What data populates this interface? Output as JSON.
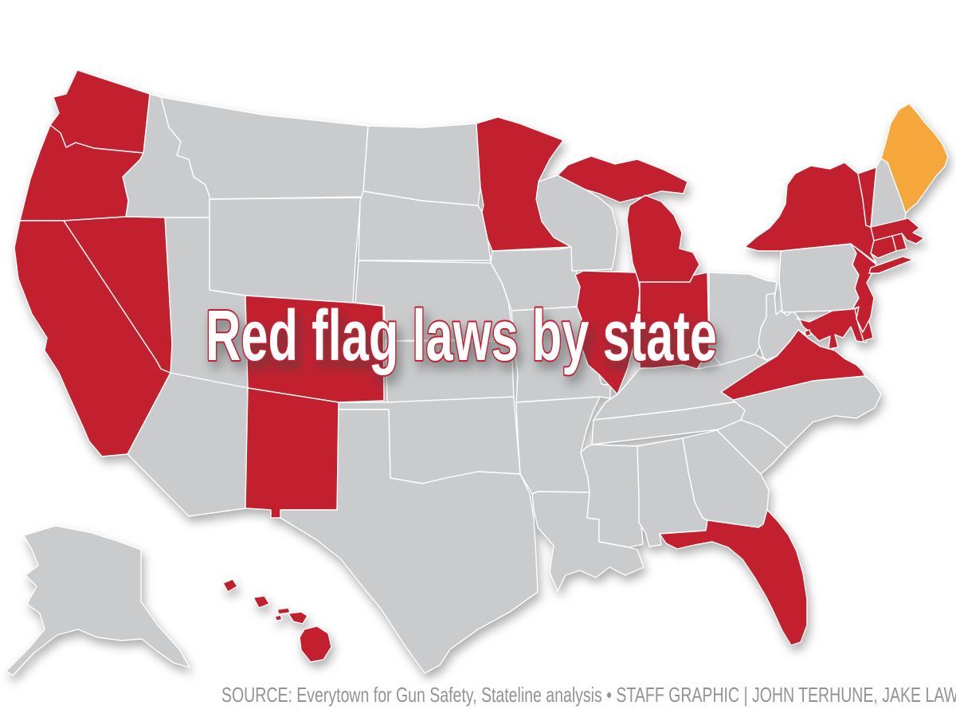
{
  "title": "Red flag laws by state",
  "source_credit": "SOURCE: Everytown for Gun Safety, Stateline analysis • STAFF GRAPHIC | JOHN TERHUNE, JAKE LAW",
  "chart_data": {
    "type": "choropleth_map",
    "region": "United States",
    "title": "Red flag laws by state",
    "colors": {
      "red_flag_law": "#c3202f",
      "yellow_flag_law": "#f6a73b",
      "no_law": "#c9cbcd",
      "state_border": "#ffffff",
      "title_fill": "#ffffff",
      "title_outline": "#c3202f",
      "source_text": "#919396"
    },
    "states": [
      {
        "id": "AK",
        "name": "Alaska",
        "status": "no_law"
      },
      {
        "id": "MT",
        "name": "Montana",
        "status": "no_law"
      },
      {
        "id": "ID",
        "name": "Idaho",
        "status": "no_law"
      },
      {
        "id": "WY",
        "name": "Wyoming",
        "status": "no_law"
      },
      {
        "id": "UT",
        "name": "Utah",
        "status": "no_law"
      },
      {
        "id": "AZ",
        "name": "Arizona",
        "status": "no_law"
      },
      {
        "id": "ND",
        "name": "North Dakota",
        "status": "no_law"
      },
      {
        "id": "SD",
        "name": "South Dakota",
        "status": "no_law"
      },
      {
        "id": "NE",
        "name": "Nebraska",
        "status": "no_law"
      },
      {
        "id": "KS",
        "name": "Kansas",
        "status": "no_law"
      },
      {
        "id": "OK",
        "name": "Oklahoma",
        "status": "no_law"
      },
      {
        "id": "TX",
        "name": "Texas",
        "status": "no_law"
      },
      {
        "id": "IA",
        "name": "Iowa",
        "status": "no_law"
      },
      {
        "id": "MO",
        "name": "Missouri",
        "status": "no_law"
      },
      {
        "id": "AR",
        "name": "Arkansas",
        "status": "no_law"
      },
      {
        "id": "LA",
        "name": "Louisiana",
        "status": "no_law"
      },
      {
        "id": "WI",
        "name": "Wisconsin",
        "status": "no_law"
      },
      {
        "id": "OH",
        "name": "Ohio",
        "status": "no_law"
      },
      {
        "id": "KY",
        "name": "Kentucky",
        "status": "no_law"
      },
      {
        "id": "TN",
        "name": "Tennessee",
        "status": "no_law"
      },
      {
        "id": "MS",
        "name": "Mississippi",
        "status": "no_law"
      },
      {
        "id": "AL",
        "name": "Alabama",
        "status": "no_law"
      },
      {
        "id": "GA",
        "name": "Georgia",
        "status": "no_law"
      },
      {
        "id": "SC",
        "name": "South Carolina",
        "status": "no_law"
      },
      {
        "id": "NC",
        "name": "North Carolina",
        "status": "no_law"
      },
      {
        "id": "WV",
        "name": "West Virginia",
        "status": "no_law"
      },
      {
        "id": "PA",
        "name": "Pennsylvania",
        "status": "no_law"
      },
      {
        "id": "NH",
        "name": "New Hampshire",
        "status": "no_law"
      },
      {
        "id": "WA",
        "name": "Washington",
        "status": "red_flag_law"
      },
      {
        "id": "OR",
        "name": "Oregon",
        "status": "red_flag_law"
      },
      {
        "id": "CA",
        "name": "California",
        "status": "red_flag_law"
      },
      {
        "id": "NV",
        "name": "Nevada",
        "status": "red_flag_law"
      },
      {
        "id": "CO",
        "name": "Colorado",
        "status": "red_flag_law"
      },
      {
        "id": "NM",
        "name": "New Mexico",
        "status": "red_flag_law"
      },
      {
        "id": "MN",
        "name": "Minnesota",
        "status": "red_flag_law"
      },
      {
        "id": "IL",
        "name": "Illinois",
        "status": "red_flag_law"
      },
      {
        "id": "IN",
        "name": "Indiana",
        "status": "red_flag_law"
      },
      {
        "id": "MI",
        "name": "Michigan",
        "status": "red_flag_law"
      },
      {
        "id": "FL",
        "name": "Florida",
        "status": "red_flag_law"
      },
      {
        "id": "VA",
        "name": "Virginia",
        "status": "red_flag_law"
      },
      {
        "id": "MD",
        "name": "Maryland",
        "status": "red_flag_law"
      },
      {
        "id": "DE",
        "name": "Delaware",
        "status": "red_flag_law"
      },
      {
        "id": "NJ",
        "name": "New Jersey",
        "status": "red_flag_law"
      },
      {
        "id": "NY",
        "name": "New York",
        "status": "red_flag_law"
      },
      {
        "id": "CT",
        "name": "Connecticut",
        "status": "red_flag_law"
      },
      {
        "id": "RI",
        "name": "Rhode Island",
        "status": "red_flag_law"
      },
      {
        "id": "MA",
        "name": "Massachusetts",
        "status": "red_flag_law"
      },
      {
        "id": "VT",
        "name": "Vermont",
        "status": "red_flag_law"
      },
      {
        "id": "HI",
        "name": "Hawaii",
        "status": "red_flag_law"
      },
      {
        "id": "DC",
        "name": "District of Columbia",
        "status": "red_flag_law"
      },
      {
        "id": "ME",
        "name": "Maine",
        "status": "yellow_flag_law"
      }
    ]
  }
}
